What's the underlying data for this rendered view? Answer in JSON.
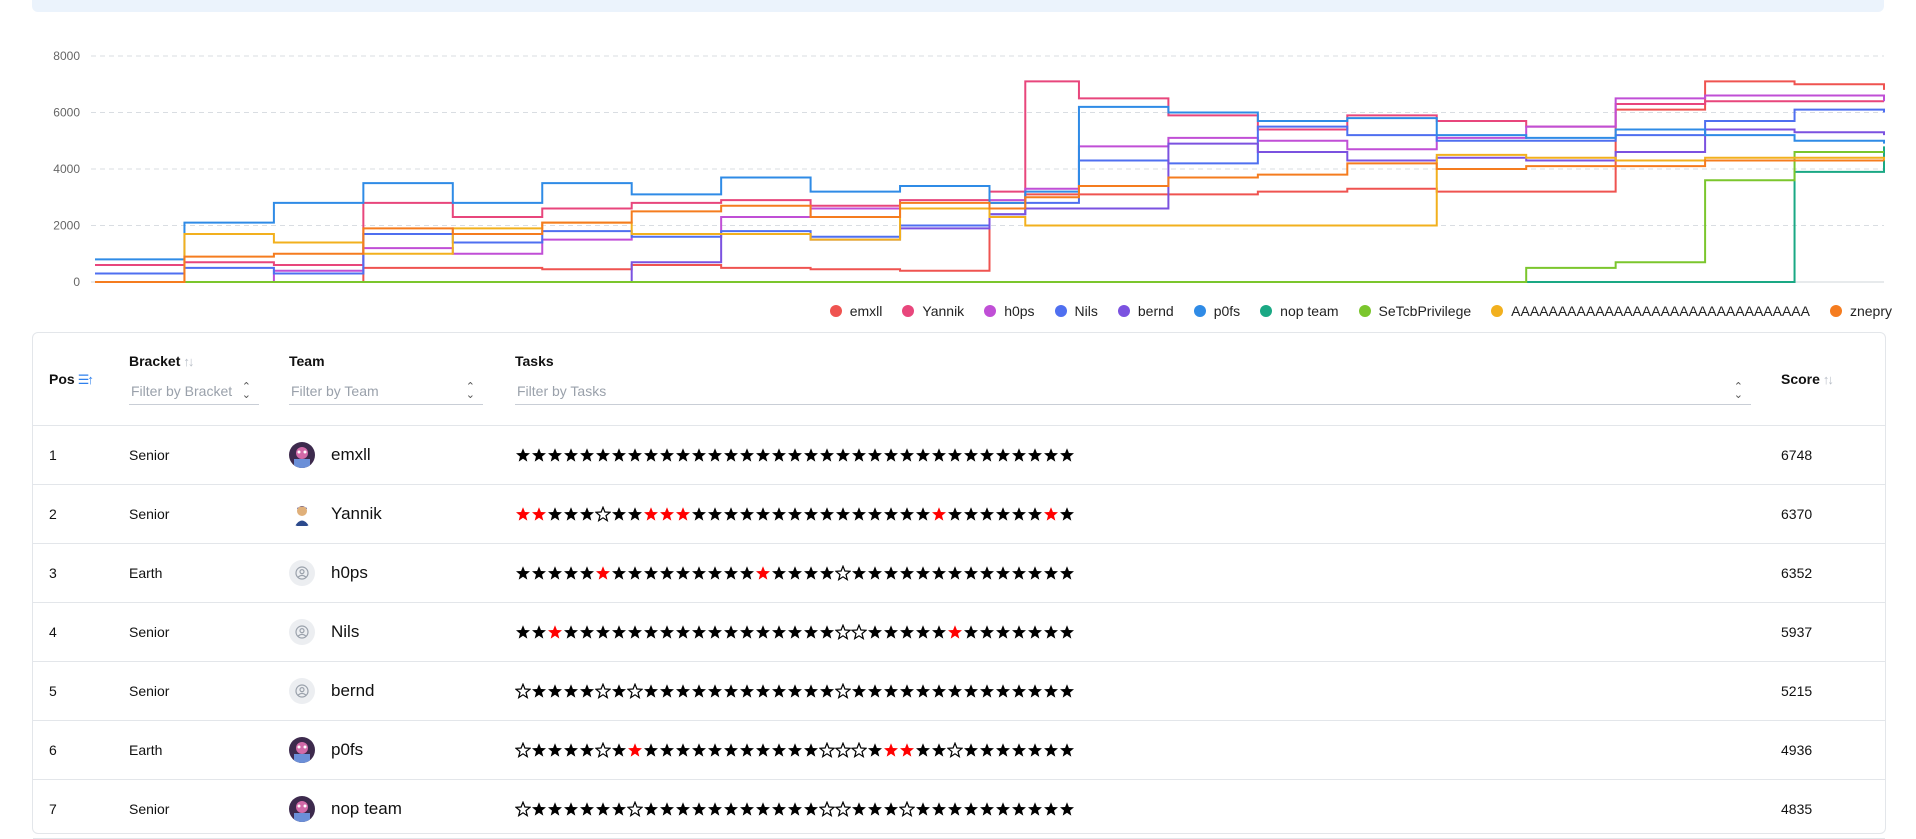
{
  "colors": {
    "emxll": "#ef5350",
    "Yannik": "#e8467c",
    "h0ps": "#c04fd6",
    "Nils": "#4f6ff0",
    "bernd": "#7b52e0",
    "p0fs": "#2f8be6",
    "nop team": "#1aa884",
    "SeTcbPrivilege": "#7bc62d",
    "AAAAAAAAAAAAAAAAAAAAAAAAAAAAAAAA": "#f2b01e",
    "znepry": "#f57c1f",
    "star_solved": "#000000",
    "star_first_blood": "#ff0000",
    "star_unsolved": "#000000"
  },
  "chart_data": {
    "type": "line",
    "title": "",
    "xlabel": "",
    "ylabel": "",
    "ylim": [
      0,
      8000
    ],
    "yticks": [
      0,
      2000,
      4000,
      6000,
      8000
    ],
    "grid": true,
    "legend_position": "bottom-right",
    "x": [
      0,
      5,
      10,
      15,
      20,
      25,
      30,
      35,
      40,
      45,
      50,
      52,
      55,
      60,
      65,
      70,
      75,
      80,
      85,
      90,
      95,
      100
    ],
    "series": [
      {
        "name": "emxll",
        "values": [
          0,
          0,
          0,
          500,
          500,
          450,
          600,
          500,
          450,
          400,
          2800,
          3100,
          3100,
          3100,
          3200,
          3300,
          3200,
          3200,
          6100,
          7100,
          7000,
          6800
        ]
      },
      {
        "name": "Yannik",
        "values": [
          600,
          700,
          600,
          2800,
          2300,
          2600,
          2800,
          2900,
          2700,
          2900,
          3200,
          7100,
          6500,
          5900,
          5400,
          5900,
          5700,
          5500,
          6300,
          6400,
          6400,
          6400
        ]
      },
      {
        "name": "h0ps",
        "values": [
          0,
          0,
          400,
          1200,
          1000,
          1500,
          1700,
          2300,
          2600,
          2600,
          2900,
          3300,
          4800,
          5100,
          5000,
          4700,
          5100,
          5500,
          6500,
          6600,
          6600,
          6400
        ]
      },
      {
        "name": "Nils",
        "values": [
          300,
          500,
          300,
          1700,
          1400,
          1800,
          1600,
          1800,
          1600,
          2000,
          2400,
          2800,
          4300,
          4200,
          5500,
          5200,
          5000,
          5000,
          5200,
          5700,
          6100,
          6000
        ]
      },
      {
        "name": "bernd",
        "values": [
          0,
          0,
          0,
          0,
          0,
          0,
          700,
          1700,
          1500,
          1900,
          2400,
          2600,
          2600,
          4900,
          4600,
          4300,
          4400,
          4300,
          4600,
          5400,
          5300,
          5200
        ]
      },
      {
        "name": "p0fs",
        "values": [
          800,
          2100,
          2800,
          3500,
          2800,
          3500,
          3100,
          3700,
          3200,
          3400,
          2800,
          3200,
          6200,
          6000,
          5700,
          5800,
          5200,
          5100,
          5400,
          5200,
          5000,
          4900
        ]
      },
      {
        "name": "nop team",
        "values": [
          0,
          0,
          0,
          0,
          0,
          0,
          0,
          0,
          0,
          0,
          0,
          0,
          0,
          0,
          0,
          0,
          0,
          0,
          0,
          0,
          3900,
          4800
        ]
      },
      {
        "name": "SeTcbPrivilege",
        "values": [
          0,
          0,
          0,
          0,
          0,
          0,
          0,
          0,
          0,
          0,
          0,
          0,
          0,
          0,
          0,
          0,
          0,
          500,
          700,
          3600,
          4600,
          4600
        ]
      },
      {
        "name": "AAAAAAAAAAAAAAAAAAAAAAAAAAAAAAAA",
        "values": [
          0,
          1700,
          1400,
          1000,
          1900,
          2100,
          1700,
          1700,
          1500,
          2600,
          2300,
          2000,
          2000,
          2000,
          2000,
          2000,
          4500,
          4400,
          4300,
          4400,
          4400,
          4300
        ]
      },
      {
        "name": "znepry",
        "values": [
          0,
          900,
          1000,
          1900,
          1700,
          2100,
          2500,
          2700,
          2300,
          2800,
          2600,
          3000,
          3400,
          3700,
          3800,
          4200,
          4000,
          4100,
          4100,
          4300,
          4300,
          4300
        ]
      }
    ]
  },
  "table": {
    "headers": {
      "pos": "Pos",
      "bracket": "Bracket",
      "team": "Team",
      "tasks": "Tasks",
      "score": "Score"
    },
    "filters": {
      "bracket": "Filter by Bracket",
      "team": "Filter by Team",
      "tasks": "Filter by Tasks"
    },
    "rows": [
      {
        "pos": "1",
        "bracket": "Senior",
        "team": "emxll",
        "avatar": "photo-avatar",
        "score": "6748",
        "tasks": "SSSSSSSSSSSSSSSSSSSSSSSSSSSSSSSSSSS"
      },
      {
        "pos": "2",
        "bracket": "Senior",
        "team": "Yannik",
        "avatar": "person-avatar",
        "score": "6370",
        "tasks": "FFSSSUSSFFFSSSSSSSSSSSSSSSFSSSSSSFS"
      },
      {
        "pos": "3",
        "bracket": "Earth",
        "team": "h0ps",
        "avatar": "default-user",
        "score": "6352",
        "tasks": "SSSSSFSSSSSSSSSFSSSSUSSSSSSSSSSSSSS"
      },
      {
        "pos": "4",
        "bracket": "Senior",
        "team": "Nils",
        "avatar": "default-user",
        "score": "5937",
        "tasks": "SSFSSSSSSSSSSSSSSSSSUUSSSSSFSSSSSSS"
      },
      {
        "pos": "5",
        "bracket": "Senior",
        "team": "bernd",
        "avatar": "default-user",
        "score": "5215",
        "tasks": "USSSSUSUSSSSSSSSSSSSUSSSSSSSSSSSSSS"
      },
      {
        "pos": "6",
        "bracket": "Earth",
        "team": "p0fs",
        "avatar": "photo-avatar",
        "score": "4936",
        "tasks": "USSSSUSFSSSSSSSSSSSUUUSFFSSUSSSSSSS"
      },
      {
        "pos": "7",
        "bracket": "Senior",
        "team": "nop team",
        "avatar": "photo-avatar",
        "score": "4835",
        "tasks": "USSSSSSUSSSSSSSSSSSUUSSSUSSSSSSSSSS"
      }
    ]
  }
}
